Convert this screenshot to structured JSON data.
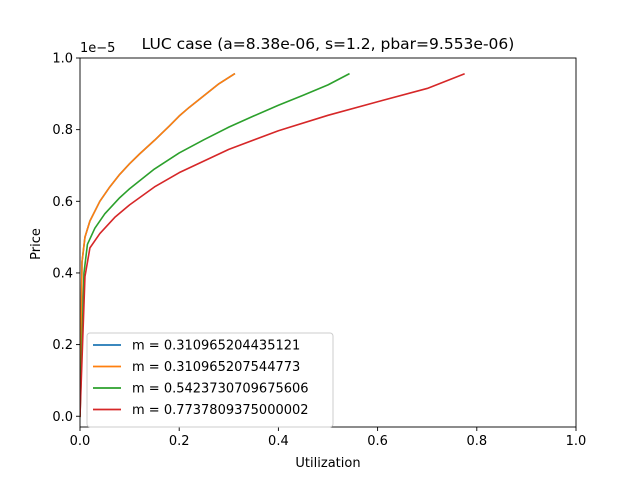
{
  "chart_data": {
    "type": "line",
    "title": "LUC case (a=8.38e-06, s=1.2, pbar=9.553e-06)",
    "xlabel": "Utilization",
    "ylabel": "Price",
    "y_offset_text": "1e−5",
    "xlim": [
      0.0,
      1.0
    ],
    "ylim": [
      -0.03,
      1.0
    ],
    "x_ticks": [
      0.0,
      0.2,
      0.4,
      0.6,
      0.8,
      1.0
    ],
    "x_tick_labels": [
      "0.0",
      "0.2",
      "0.4",
      "0.6",
      "0.8",
      "1.0"
    ],
    "y_ticks": [
      0.0,
      0.2,
      0.4,
      0.6,
      0.8,
      1.0
    ],
    "y_tick_labels": [
      "0.0",
      "0.2",
      "0.4",
      "0.6",
      "0.8",
      "1.0"
    ],
    "grid": false,
    "legend_position": "lower-left",
    "y_units_scale": 1e-05,
    "series": [
      {
        "name": "m = 0.310965204435121",
        "color": "#1f77b4",
        "points": [
          [
            0.0,
            0.0
          ],
          [
            0.004,
            0.43
          ],
          [
            0.01,
            0.5
          ],
          [
            0.02,
            0.545
          ],
          [
            0.04,
            0.6
          ],
          [
            0.06,
            0.64
          ],
          [
            0.08,
            0.675
          ],
          [
            0.1,
            0.705
          ],
          [
            0.12,
            0.732
          ],
          [
            0.15,
            0.77
          ],
          [
            0.18,
            0.81
          ],
          [
            0.2,
            0.838
          ],
          [
            0.22,
            0.862
          ],
          [
            0.25,
            0.895
          ],
          [
            0.28,
            0.928
          ],
          [
            0.311,
            0.9553
          ]
        ]
      },
      {
        "name": "m = 0.310965207544773",
        "color": "#ff7f0e",
        "points": [
          [
            0.0,
            0.0
          ],
          [
            0.004,
            0.43
          ],
          [
            0.01,
            0.5
          ],
          [
            0.02,
            0.545
          ],
          [
            0.04,
            0.6
          ],
          [
            0.06,
            0.64
          ],
          [
            0.08,
            0.675
          ],
          [
            0.1,
            0.705
          ],
          [
            0.12,
            0.732
          ],
          [
            0.15,
            0.77
          ],
          [
            0.18,
            0.81
          ],
          [
            0.2,
            0.838
          ],
          [
            0.22,
            0.862
          ],
          [
            0.25,
            0.895
          ],
          [
            0.28,
            0.928
          ],
          [
            0.311,
            0.9553
          ]
        ]
      },
      {
        "name": "m = 0.5423730709675606",
        "color": "#2ca02c",
        "points": [
          [
            0.0,
            0.0
          ],
          [
            0.008,
            0.4
          ],
          [
            0.015,
            0.48
          ],
          [
            0.03,
            0.525
          ],
          [
            0.05,
            0.565
          ],
          [
            0.08,
            0.61
          ],
          [
            0.1,
            0.635
          ],
          [
            0.15,
            0.69
          ],
          [
            0.2,
            0.735
          ],
          [
            0.25,
            0.772
          ],
          [
            0.3,
            0.807
          ],
          [
            0.35,
            0.838
          ],
          [
            0.4,
            0.868
          ],
          [
            0.45,
            0.896
          ],
          [
            0.5,
            0.925
          ],
          [
            0.542,
            0.9553
          ]
        ]
      },
      {
        "name": "m = 0.7737809375000002",
        "color": "#d62728",
        "points": [
          [
            0.0,
            0.0
          ],
          [
            0.01,
            0.39
          ],
          [
            0.02,
            0.47
          ],
          [
            0.04,
            0.51
          ],
          [
            0.07,
            0.555
          ],
          [
            0.1,
            0.59
          ],
          [
            0.15,
            0.64
          ],
          [
            0.2,
            0.68
          ],
          [
            0.3,
            0.745
          ],
          [
            0.4,
            0.797
          ],
          [
            0.5,
            0.84
          ],
          [
            0.6,
            0.878
          ],
          [
            0.7,
            0.915
          ],
          [
            0.774,
            0.9553
          ]
        ]
      }
    ]
  }
}
